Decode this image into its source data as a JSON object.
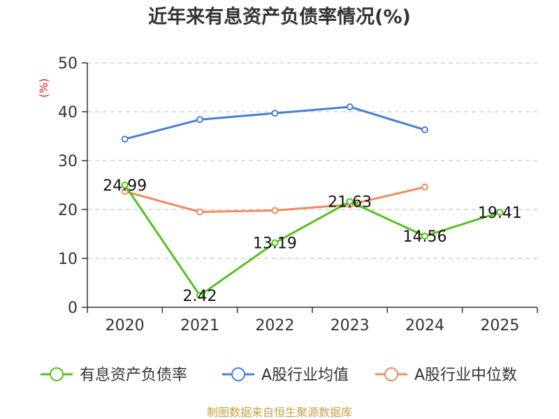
{
  "chart_data": {
    "type": "line",
    "title": "近年来有息资产负债率情况(%)",
    "ylabel": "(%)",
    "categories": [
      "2020",
      "2021",
      "2022",
      "2023",
      "2024",
      "2025"
    ],
    "ylim": [
      0,
      50
    ],
    "yticks": [
      0,
      10,
      20,
      30,
      40,
      50
    ],
    "grid": true,
    "legend_position": "bottom",
    "series": [
      {
        "name": "有息资产负债率",
        "color": "#52c41a",
        "values": [
          24.99,
          2.42,
          13.19,
          21.63,
          14.56,
          19.41
        ],
        "labels": [
          "24.99",
          "2.42",
          "13.19",
          "21.63",
          "14.56",
          "19.41"
        ]
      },
      {
        "name": "A股行业均值",
        "color": "#4a7fd4",
        "values": [
          34.4,
          38.4,
          39.7,
          41.0,
          36.3,
          null
        ]
      },
      {
        "name": "A股行业中位数",
        "color": "#f28b5b",
        "values": [
          23.7,
          19.5,
          19.8,
          21.0,
          24.6,
          null
        ]
      }
    ],
    "source": "制图数据来自恒生聚源数据库"
  }
}
